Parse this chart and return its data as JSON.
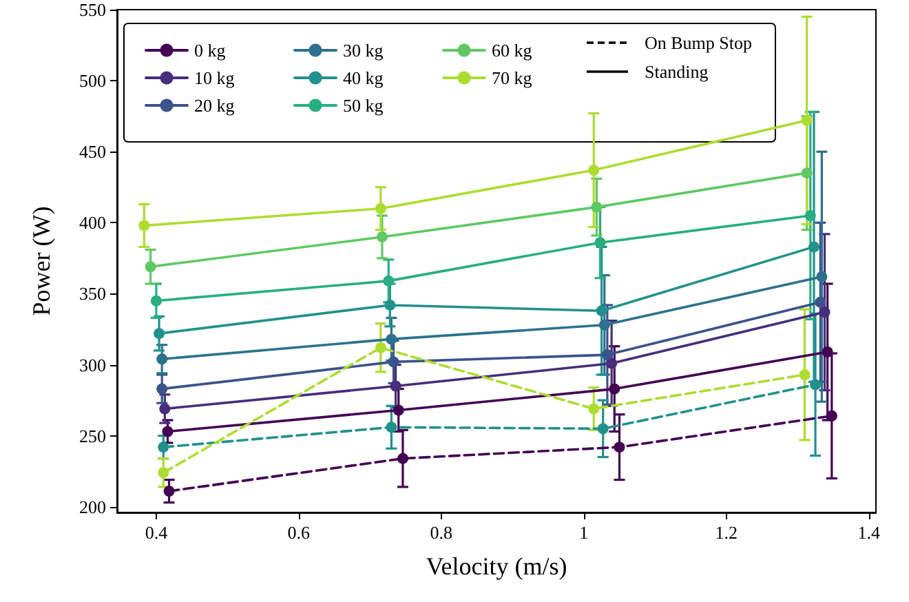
{
  "chart_data": {
    "type": "line",
    "xlabel": "Velocity (m/s)",
    "ylabel": "Power (W)",
    "xlim": [
      0.345,
      1.41
    ],
    "xticks": [
      0.4,
      0.6,
      0.8,
      1.0,
      1.2,
      1.4
    ],
    "ylim": [
      196,
      550
    ],
    "yticks": [
      200,
      250,
      300,
      350,
      400,
      450,
      500,
      550
    ],
    "grid": false,
    "legend": "top",
    "marker": "circle",
    "annotations": [
      "On Bump Stop",
      "Standing"
    ],
    "series": [
      {
        "name": "0 kg",
        "color": "#440154",
        "line_style": "solid",
        "x": [
          0.416,
          0.74,
          1.043,
          1.342
        ],
        "values": [
          253,
          268,
          283,
          309
        ],
        "errors": [
          8,
          15,
          30,
          48
        ]
      },
      {
        "name": "10 kg",
        "color": "#472d7b",
        "line_style": "solid",
        "x": [
          0.412,
          0.736,
          1.039,
          1.338
        ],
        "values": [
          269,
          285,
          301,
          337
        ],
        "errors": [
          10,
          15,
          30,
          55
        ]
      },
      {
        "name": "20 kg",
        "color": "#3b528b",
        "line_style": "solid",
        "x": [
          0.408,
          0.733,
          1.033,
          1.332
        ],
        "values": [
          283,
          302,
          307,
          344
        ],
        "errors": [
          10,
          15,
          35,
          56
        ]
      },
      {
        "name": "30 kg",
        "color": "#2c728e",
        "line_style": "solid",
        "x": [
          0.408,
          0.73,
          1.029,
          1.334
        ],
        "values": [
          304,
          318,
          328,
          362
        ],
        "errors": [
          10,
          15,
          35,
          88
        ]
      },
      {
        "name": "40 kg",
        "color": "#21918c",
        "line_style": "solid",
        "x": [
          0.404,
          0.728,
          1.025,
          1.323
        ],
        "values": [
          322,
          342,
          338,
          383
        ],
        "errors": [
          12,
          15,
          45,
          95
        ]
      },
      {
        "name": "50 kg",
        "color": "#28ae80",
        "line_style": "solid",
        "x": [
          0.4,
          0.726,
          1.023,
          1.318
        ],
        "values": [
          345,
          359,
          386,
          405
        ],
        "errors": [
          12,
          15,
          25,
          73
        ]
      },
      {
        "name": "60 kg",
        "color": "#5ec962",
        "line_style": "solid",
        "x": [
          0.392,
          0.717,
          1.018,
          1.313
        ],
        "values": [
          369,
          390,
          411,
          435
        ],
        "errors": [
          12,
          15,
          20,
          40
        ]
      },
      {
        "name": "70 kg",
        "color": "#addc30",
        "line_style": "solid",
        "x": [
          0.383,
          0.715,
          1.014,
          1.313
        ],
        "values": [
          398,
          410,
          437,
          472
        ],
        "errors": [
          15,
          15,
          40,
          73
        ]
      },
      {
        "color": "#440154",
        "line_style": "dashed",
        "x": [
          0.418,
          0.746,
          1.05,
          1.348
        ],
        "values": [
          211,
          234,
          242,
          264
        ],
        "errors": [
          8,
          20,
          23,
          44
        ]
      },
      {
        "color": "#21918c",
        "line_style": "dashed",
        "x": [
          0.41,
          0.73,
          1.027,
          1.325
        ],
        "values": [
          242,
          256,
          255,
          286
        ],
        "errors": [
          8,
          15,
          20,
          50
        ]
      },
      {
        "color": "#addc30",
        "line_style": "dashed",
        "x": [
          0.41,
          0.715,
          1.014,
          1.31
        ],
        "values": [
          224,
          312,
          269,
          293
        ],
        "errors": [
          10,
          17,
          15,
          46
        ]
      }
    ]
  }
}
